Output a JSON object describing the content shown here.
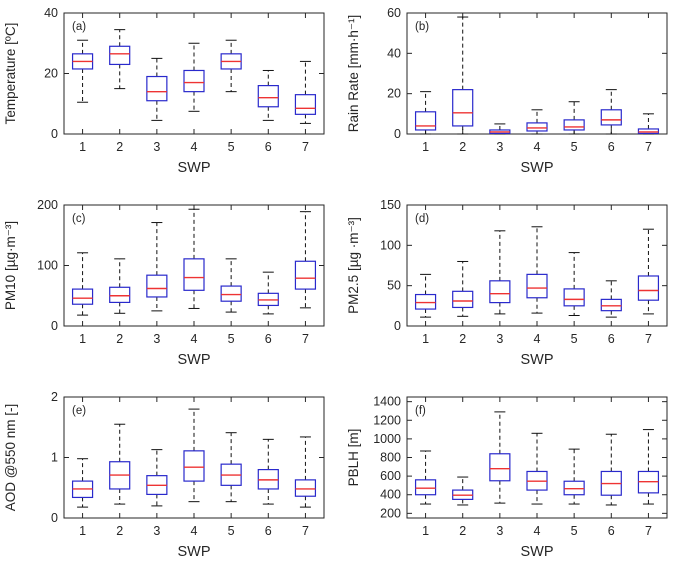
{
  "figure": {
    "background": "#ffffff",
    "box_color": "#2929cc",
    "median_color": "#ee3333",
    "whisker_color": "#111111",
    "frame_color": "#262626",
    "grid": "off",
    "legend": "none"
  },
  "chart_data": [
    {
      "id": "a",
      "type": "boxplot",
      "panel_label": "(a)",
      "ylabel": "Temperature [ºC]",
      "xlabel": "SWP",
      "ylim": [
        0,
        40
      ],
      "yticks": [
        0,
        20,
        40
      ],
      "categories": [
        "1",
        "2",
        "3",
        "4",
        "5",
        "6",
        "7"
      ],
      "boxes": [
        {
          "lo": 10.5,
          "q1": 21.5,
          "med": 24,
          "q3": 26.5,
          "hi": 31
        },
        {
          "lo": 15,
          "q1": 23,
          "med": 26.5,
          "q3": 29,
          "hi": 34.5
        },
        {
          "lo": 4.5,
          "q1": 11,
          "med": 14,
          "q3": 19,
          "hi": 25
        },
        {
          "lo": 7.5,
          "q1": 14,
          "med": 17,
          "q3": 21,
          "hi": 30
        },
        {
          "lo": 14,
          "q1": 21.5,
          "med": 24,
          "q3": 26.5,
          "hi": 31
        },
        {
          "lo": 4.5,
          "q1": 9,
          "med": 12,
          "q3": 16,
          "hi": 21
        },
        {
          "lo": 3.5,
          "q1": 6.5,
          "med": 8.5,
          "q3": 13,
          "hi": 24
        }
      ]
    },
    {
      "id": "b",
      "type": "boxplot",
      "panel_label": "(b)",
      "ylabel": "Rain Rate [mm·h⁻¹]",
      "xlabel": "SWP",
      "ylim": [
        0,
        60
      ],
      "yticks": [
        0,
        20,
        40,
        60
      ],
      "categories": [
        "1",
        "2",
        "3",
        "4",
        "5",
        "6",
        "7"
      ],
      "boxes": [
        {
          "lo": 0,
          "q1": 2,
          "med": 4,
          "q3": 11,
          "hi": 21
        },
        {
          "lo": 0,
          "q1": 4,
          "med": 10.5,
          "q3": 22,
          "hi": 58
        },
        {
          "lo": 0,
          "q1": 0.3,
          "med": 1,
          "q3": 2,
          "hi": 5
        },
        {
          "lo": 0,
          "q1": 1.5,
          "med": 3,
          "q3": 5.5,
          "hi": 12
        },
        {
          "lo": 0,
          "q1": 2,
          "med": 3.5,
          "q3": 7,
          "hi": 16
        },
        {
          "lo": 0,
          "q1": 4.5,
          "med": 7,
          "q3": 12,
          "hi": 22
        },
        {
          "lo": 0,
          "q1": 0.3,
          "med": 1,
          "q3": 2.5,
          "hi": 10
        }
      ]
    },
    {
      "id": "c",
      "type": "boxplot",
      "panel_label": "(c)",
      "ylabel": "PM10 [µg·m⁻³]",
      "xlabel": "SWP",
      "ylim": [
        0,
        200
      ],
      "yticks": [
        0,
        100,
        200
      ],
      "categories": [
        "1",
        "2",
        "3",
        "4",
        "5",
        "6",
        "7"
      ],
      "boxes": [
        {
          "lo": 18,
          "q1": 36,
          "med": 46,
          "q3": 61,
          "hi": 121
        },
        {
          "lo": 21,
          "q1": 39,
          "med": 50,
          "q3": 64,
          "hi": 111
        },
        {
          "lo": 25,
          "q1": 48,
          "med": 62,
          "q3": 84,
          "hi": 171
        },
        {
          "lo": 29,
          "q1": 59,
          "med": 80,
          "q3": 111,
          "hi": 193
        },
        {
          "lo": 23,
          "q1": 41,
          "med": 52,
          "q3": 66,
          "hi": 111
        },
        {
          "lo": 20,
          "q1": 34,
          "med": 43,
          "q3": 54,
          "hi": 89
        },
        {
          "lo": 30,
          "q1": 61,
          "med": 79,
          "q3": 107,
          "hi": 189
        }
      ]
    },
    {
      "id": "d",
      "type": "boxplot",
      "panel_label": "(d)",
      "ylabel": "PM2.5 [µg ·m⁻³]",
      "xlabel": "SWP",
      "ylim": [
        0,
        150
      ],
      "yticks": [
        0,
        50,
        100,
        150
      ],
      "categories": [
        "1",
        "2",
        "3",
        "4",
        "5",
        "6",
        "7"
      ],
      "boxes": [
        {
          "lo": 11,
          "q1": 21,
          "med": 29,
          "q3": 39,
          "hi": 64
        },
        {
          "lo": 12,
          "q1": 23,
          "med": 31,
          "q3": 43,
          "hi": 80
        },
        {
          "lo": 15,
          "q1": 29,
          "med": 40,
          "q3": 56,
          "hi": 118
        },
        {
          "lo": 16,
          "q1": 35,
          "med": 47,
          "q3": 64,
          "hi": 123
        },
        {
          "lo": 13,
          "q1": 25,
          "med": 33,
          "q3": 46,
          "hi": 91
        },
        {
          "lo": 11,
          "q1": 19,
          "med": 25,
          "q3": 33,
          "hi": 56
        },
        {
          "lo": 15,
          "q1": 32,
          "med": 44,
          "q3": 62,
          "hi": 120
        }
      ]
    },
    {
      "id": "e",
      "type": "boxplot",
      "panel_label": "(e)",
      "ylabel": "AOD @550 nm [-]",
      "xlabel": "SWP",
      "ylim": [
        0,
        2
      ],
      "yticks": [
        0,
        1,
        2
      ],
      "categories": [
        "1",
        "2",
        "3",
        "4",
        "5",
        "6",
        "7"
      ],
      "boxes": [
        {
          "lo": 0.18,
          "q1": 0.34,
          "med": 0.48,
          "q3": 0.61,
          "hi": 0.98
        },
        {
          "lo": 0.23,
          "q1": 0.48,
          "med": 0.71,
          "q3": 0.93,
          "hi": 1.55
        },
        {
          "lo": 0.2,
          "q1": 0.39,
          "med": 0.54,
          "q3": 0.7,
          "hi": 1.13
        },
        {
          "lo": 0.27,
          "q1": 0.61,
          "med": 0.84,
          "q3": 1.11,
          "hi": 1.8
        },
        {
          "lo": 0.27,
          "q1": 0.54,
          "med": 0.71,
          "q3": 0.89,
          "hi": 1.41
        },
        {
          "lo": 0.23,
          "q1": 0.48,
          "med": 0.63,
          "q3": 0.8,
          "hi": 1.3
        },
        {
          "lo": 0.18,
          "q1": 0.36,
          "med": 0.48,
          "q3": 0.63,
          "hi": 1.34
        }
      ]
    },
    {
      "id": "f",
      "type": "boxplot",
      "panel_label": "(f)",
      "ylabel": "PBLH [m]",
      "xlabel": "SWP",
      "ylim": [
        150,
        1450
      ],
      "yticks": [
        200,
        400,
        600,
        800,
        1000,
        1200,
        1400
      ],
      "categories": [
        "1",
        "2",
        "3",
        "4",
        "5",
        "6",
        "7"
      ],
      "boxes": [
        {
          "lo": 300,
          "q1": 400,
          "med": 470,
          "q3": 560,
          "hi": 870
        },
        {
          "lo": 290,
          "q1": 350,
          "med": 395,
          "q3": 450,
          "hi": 590
        },
        {
          "lo": 310,
          "q1": 550,
          "med": 680,
          "q3": 840,
          "hi": 1290
        },
        {
          "lo": 300,
          "q1": 450,
          "med": 545,
          "q3": 650,
          "hi": 1060
        },
        {
          "lo": 300,
          "q1": 400,
          "med": 465,
          "q3": 545,
          "hi": 890
        },
        {
          "lo": 290,
          "q1": 395,
          "med": 520,
          "q3": 650,
          "hi": 1050
        },
        {
          "lo": 300,
          "q1": 420,
          "med": 540,
          "q3": 650,
          "hi": 1100
        }
      ]
    }
  ]
}
